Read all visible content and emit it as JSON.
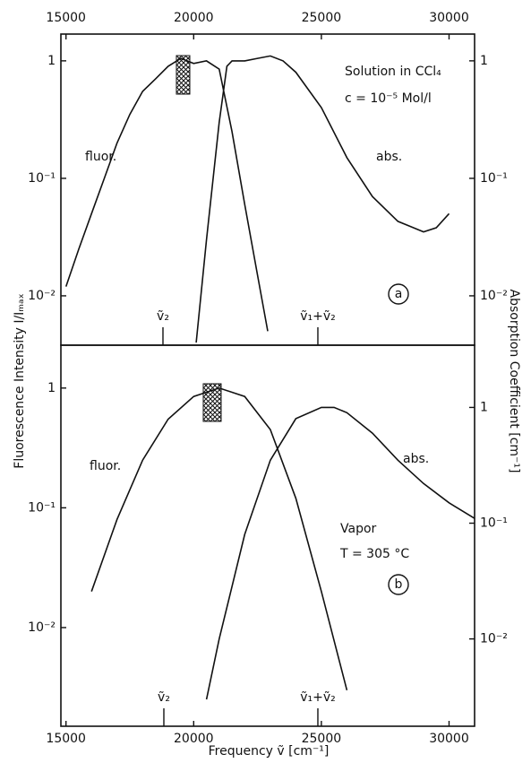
{
  "chart_data": [
    {
      "type": "line",
      "scale": "log",
      "xlim": [
        14800,
        31000
      ],
      "xticks": [
        15000,
        20000,
        25000,
        30000
      ],
      "ylim": [
        0.0038,
        1.69
      ],
      "yticks": [
        {
          "value": 1,
          "label": "1"
        },
        {
          "value": 0.1,
          "label": "10⁻¹"
        },
        {
          "value": 0.01,
          "label": "10⁻²"
        }
      ],
      "y2lim": [
        0.0038,
        1.69
      ],
      "y2ticks": [
        {
          "value": 1,
          "label": "1"
        },
        {
          "value": 0.1,
          "label": "10⁻¹"
        },
        {
          "value": 0.01,
          "label": "10⁻²"
        }
      ],
      "ylabel": "Fluorescence Intensity   I/Iₘₐₓ",
      "y2label": "Absorption Coefficient [cm⁻¹]",
      "series": [
        {
          "name": "fluor.",
          "color": "#111111",
          "x": [
            15000,
            15500,
            16000,
            16500,
            17000,
            17500,
            18000,
            18500,
            19000,
            19500,
            20000,
            20500,
            21000,
            21500,
            22000,
            22500,
            22900
          ],
          "values": [
            0.012,
            0.025,
            0.05,
            0.1,
            0.2,
            0.35,
            0.55,
            0.7,
            0.9,
            1.05,
            0.95,
            1.0,
            0.85,
            0.25,
            0.06,
            0.015,
            0.005
          ]
        },
        {
          "name": "abs.",
          "color": "#111111",
          "axis": "y2",
          "x": [
            20100,
            20500,
            21000,
            21300,
            21500,
            22000,
            22500,
            23000,
            23500,
            24000,
            25000,
            26000,
            27000,
            28000,
            29000,
            29500,
            30000
          ],
          "values": [
            0.004,
            0.03,
            0.3,
            0.9,
            1.0,
            1.0,
            1.05,
            1.1,
            1.0,
            0.8,
            0.4,
            0.15,
            0.07,
            0.043,
            0.035,
            0.038,
            0.05
          ]
        }
      ],
      "excitation": [
        19323,
        19849
      ],
      "markers": [
        {
          "label": "ṽ₂",
          "x": 18797
        },
        {
          "label": "ṽ₁+ṽ₂",
          "x": 24863
        }
      ],
      "annotations": [
        "Solution in CCl₄",
        "c = 10⁻⁵ Mol/l",
        "a"
      ]
    },
    {
      "type": "line",
      "scale": "log",
      "xlim": [
        14800,
        31000
      ],
      "xticks": [
        15000,
        20000,
        25000,
        30000
      ],
      "ylim": [
        0.0015,
        2.28
      ],
      "yticks": [
        {
          "value": 1,
          "label": "1"
        },
        {
          "value": 0.1,
          "label": "10⁻¹"
        },
        {
          "value": 0.01,
          "label": "10⁻²"
        }
      ],
      "y2lim": [
        0.00176,
        3.45
      ],
      "y2ticks": [
        {
          "value": 1,
          "label": "1"
        },
        {
          "value": 0.1,
          "label": "10⁻¹"
        },
        {
          "value": 0.01,
          "label": "10⁻²"
        }
      ],
      "xlabel": "Frequency   ṽ [cm⁻¹]",
      "series": [
        {
          "name": "fluor.",
          "color": "#111111",
          "x": [
            16000,
            17000,
            18000,
            19000,
            20000,
            21000,
            22000,
            23000,
            24000,
            25000,
            26000
          ],
          "values": [
            0.02,
            0.08,
            0.25,
            0.55,
            0.85,
            1.0,
            0.85,
            0.45,
            0.12,
            0.02,
            0.003
          ]
        },
        {
          "name": "abs.",
          "color": "#111111",
          "axis": "y2",
          "x": [
            20500,
            21000,
            22000,
            23000,
            24000,
            25000,
            25500,
            26000,
            27000,
            28000,
            29000,
            30000,
            31000
          ],
          "values": [
            0.003,
            0.01,
            0.08,
            0.35,
            0.8,
            1.0,
            1.0,
            0.9,
            0.6,
            0.35,
            0.22,
            0.15,
            0.11
          ]
        }
      ],
      "excitation": [
        20375,
        21076
      ],
      "markers": [
        {
          "label": "ṽ₂",
          "x": 18832
        },
        {
          "label": "ṽ₁+ṽ₂",
          "x": 24863
        }
      ],
      "annotations": [
        "Vapor",
        "T = 305 °C",
        "b"
      ]
    }
  ]
}
